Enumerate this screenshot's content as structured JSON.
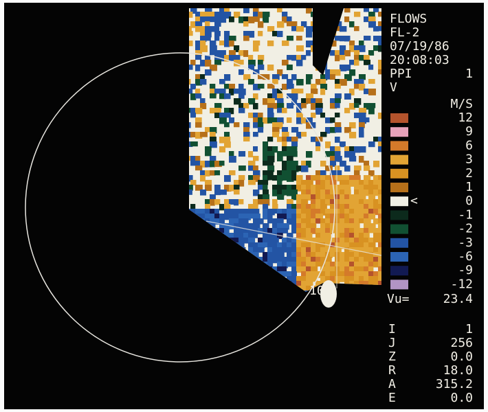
{
  "header": {
    "lines": [
      "FLOWS",
      "FL-2",
      "07/19/86",
      "20:08:03"
    ],
    "mode": "PPI",
    "tilt": "1",
    "field": "V"
  },
  "legend": {
    "unit": "M/S",
    "entries": [
      {
        "label": "12",
        "color": "#b4532c"
      },
      {
        "label": "9",
        "color": "#e6a2ba"
      },
      {
        "label": "6",
        "color": "#d47a2a"
      },
      {
        "label": "3",
        "color": "#e2a434"
      },
      {
        "label": "2",
        "color": "#d89222"
      },
      {
        "label": "1",
        "color": "#b6701a"
      },
      {
        "label": "0",
        "color": "#f1efe4",
        "marker": "<"
      },
      {
        "label": "-1",
        "color": "#0c2a1c"
      },
      {
        "label": "-2",
        "color": "#115032"
      },
      {
        "label": "-3",
        "color": "#2354a4"
      },
      {
        "label": "-6",
        "color": "#2c64b4"
      },
      {
        "label": "-9",
        "color": "#121a52"
      },
      {
        "label": "-12",
        "color": "#b294c4"
      }
    ]
  },
  "nyquist": {
    "label": "Vu=",
    "value": "23.4"
  },
  "readouts": [
    {
      "name": "I",
      "value": "1"
    },
    {
      "name": "J",
      "value": "256"
    },
    {
      "name": "Z",
      "value": "0.0"
    },
    {
      "name": "R",
      "value": "18.0"
    },
    {
      "name": "A",
      "value": "315.2"
    },
    {
      "name": "E",
      "value": "0.0"
    }
  ],
  "range_ring_label": "10"
}
